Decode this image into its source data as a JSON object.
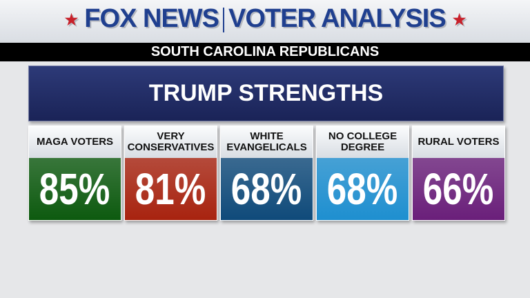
{
  "header": {
    "brand": "FOX NEWS",
    "section": "VOTER ANALYSIS"
  },
  "subtitle": "SOUTH CAROLINA REPUBLICANS",
  "title": "TRUMP STRENGTHS",
  "cards": [
    {
      "label": "MAGA VOTERS",
      "value": "85%",
      "color": "#0d5a0f"
    },
    {
      "label": "VERY CONSERVATIVES",
      "value": "81%",
      "color": "#a8230f"
    },
    {
      "label": "WHITE EVANGELICALS",
      "value": "68%",
      "color": "#0f4a7a"
    },
    {
      "label": "NO COLLEGE DEGREE",
      "value": "68%",
      "color": "#1e8fd0"
    },
    {
      "label": "RURAL VOTERS",
      "value": "66%",
      "color": "#6a1f7a"
    }
  ]
}
